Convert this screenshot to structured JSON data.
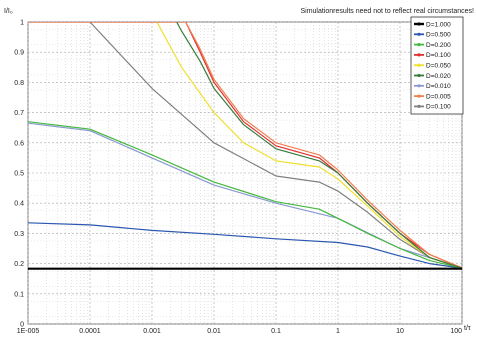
{
  "chart_data": {
    "type": "line",
    "x_scale": "log",
    "xlim": [
      1e-05,
      100
    ],
    "ylim": [
      0,
      1
    ],
    "xlabel": "t/τ",
    "ylabel": "I/I₀",
    "note": "Simulationresults need not to reflect real circumstances!",
    "grid": true,
    "legend_position": "top-right",
    "x_ticks": [
      {
        "value": 1e-05,
        "label": "1E-005"
      },
      {
        "value": 0.0001,
        "label": "0.0001"
      },
      {
        "value": 0.001,
        "label": "0.001"
      },
      {
        "value": 0.01,
        "label": "0.01"
      },
      {
        "value": 0.1,
        "label": "0.1"
      },
      {
        "value": 1,
        "label": "1"
      },
      {
        "value": 10,
        "label": "10"
      },
      {
        "value": 100,
        "label": "100"
      }
    ],
    "y_ticks": [
      {
        "value": 0,
        "label": "0"
      },
      {
        "value": 0.1,
        "label": "0.1"
      },
      {
        "value": 0.2,
        "label": "0.2"
      },
      {
        "value": 0.3,
        "label": "0.3"
      },
      {
        "value": 0.4,
        "label": "0.4"
      },
      {
        "value": 0.5,
        "label": "0.5"
      },
      {
        "value": 0.6,
        "label": "0.6"
      },
      {
        "value": 0.7,
        "label": "0.7"
      },
      {
        "value": 0.8,
        "label": "0.8"
      },
      {
        "value": 0.9,
        "label": "0.9"
      },
      {
        "value": 1,
        "label": "1"
      }
    ],
    "series": [
      {
        "name": "D=1.000",
        "color": "#000000",
        "points": [
          [
            1e-05,
            0.183
          ],
          [
            100,
            0.183
          ]
        ]
      },
      {
        "name": "D=0.500",
        "color": "#2b57b0",
        "points": [
          [
            1e-05,
            0.335
          ],
          [
            0.0001,
            0.328
          ],
          [
            0.001,
            0.31
          ],
          [
            0.01,
            0.297
          ],
          [
            0.1,
            0.282
          ],
          [
            1,
            0.27
          ],
          [
            3,
            0.255
          ],
          [
            10,
            0.225
          ],
          [
            30,
            0.2
          ],
          [
            100,
            0.185
          ]
        ]
      },
      {
        "name": "D=0.200",
        "color": "#44b840",
        "points": [
          [
            1e-05,
            0.67
          ],
          [
            0.0001,
            0.645
          ],
          [
            0.001,
            0.56
          ],
          [
            0.01,
            0.47
          ],
          [
            0.1,
            0.405
          ],
          [
            0.5,
            0.38
          ],
          [
            1,
            0.35
          ],
          [
            3,
            0.3
          ],
          [
            10,
            0.25
          ],
          [
            30,
            0.21
          ],
          [
            100,
            0.185
          ]
        ]
      },
      {
        "name": "D=0.100",
        "color": "#e03030",
        "points": [
          [
            1e-05,
            1.0
          ],
          [
            0.0035,
            1.0
          ],
          [
            0.006,
            0.9
          ],
          [
            0.01,
            0.8
          ],
          [
            0.03,
            0.67
          ],
          [
            0.1,
            0.59
          ],
          [
            0.5,
            0.55
          ],
          [
            1,
            0.5
          ],
          [
            3,
            0.4
          ],
          [
            10,
            0.3
          ],
          [
            30,
            0.23
          ],
          [
            100,
            0.185
          ]
        ]
      },
      {
        "name": "D=0.050",
        "color": "#f0e030",
        "points": [
          [
            0.0012,
            1.0
          ],
          [
            0.003,
            0.85
          ],
          [
            0.01,
            0.7
          ],
          [
            0.03,
            0.6
          ],
          [
            0.1,
            0.54
          ],
          [
            0.5,
            0.52
          ],
          [
            1,
            0.48
          ],
          [
            3,
            0.39
          ],
          [
            10,
            0.29
          ],
          [
            30,
            0.22
          ],
          [
            100,
            0.185
          ]
        ]
      },
      {
        "name": "D=0.020",
        "color": "#3a7a3a",
        "points": [
          [
            0.0025,
            1.0
          ],
          [
            0.003,
            0.97
          ],
          [
            0.006,
            0.87
          ],
          [
            0.01,
            0.78
          ],
          [
            0.03,
            0.66
          ],
          [
            0.1,
            0.58
          ],
          [
            0.5,
            0.54
          ],
          [
            1,
            0.5
          ],
          [
            3,
            0.4
          ],
          [
            10,
            0.3
          ],
          [
            30,
            0.22
          ],
          [
            100,
            0.185
          ]
        ]
      },
      {
        "name": "D=0.010",
        "color": "#8a9ad0",
        "points": [
          [
            1e-05,
            0.665
          ],
          [
            0.0001,
            0.64
          ],
          [
            0.001,
            0.55
          ],
          [
            0.01,
            0.46
          ],
          [
            0.1,
            0.4
          ],
          [
            1,
            0.35
          ],
          [
            10,
            0.25
          ],
          [
            100,
            0.186
          ]
        ]
      },
      {
        "name": "D=0.005",
        "color": "#f08050",
        "points": [
          [
            1e-05,
            1.0
          ],
          [
            0.0035,
            1.0
          ],
          [
            0.006,
            0.91
          ],
          [
            0.01,
            0.81
          ],
          [
            0.03,
            0.68
          ],
          [
            0.1,
            0.6
          ],
          [
            0.5,
            0.56
          ],
          [
            1,
            0.51
          ],
          [
            3,
            0.41
          ],
          [
            10,
            0.31
          ],
          [
            30,
            0.23
          ],
          [
            100,
            0.186
          ]
        ]
      },
      {
        "name": "D=0.100",
        "color": "#808080",
        "points": [
          [
            0.0001,
            1.0
          ],
          [
            0.001,
            0.78
          ],
          [
            0.01,
            0.6
          ],
          [
            0.1,
            0.49
          ],
          [
            0.5,
            0.47
          ],
          [
            1,
            0.44
          ],
          [
            3,
            0.37
          ],
          [
            10,
            0.28
          ],
          [
            30,
            0.22
          ],
          [
            100,
            0.185
          ]
        ]
      }
    ]
  }
}
